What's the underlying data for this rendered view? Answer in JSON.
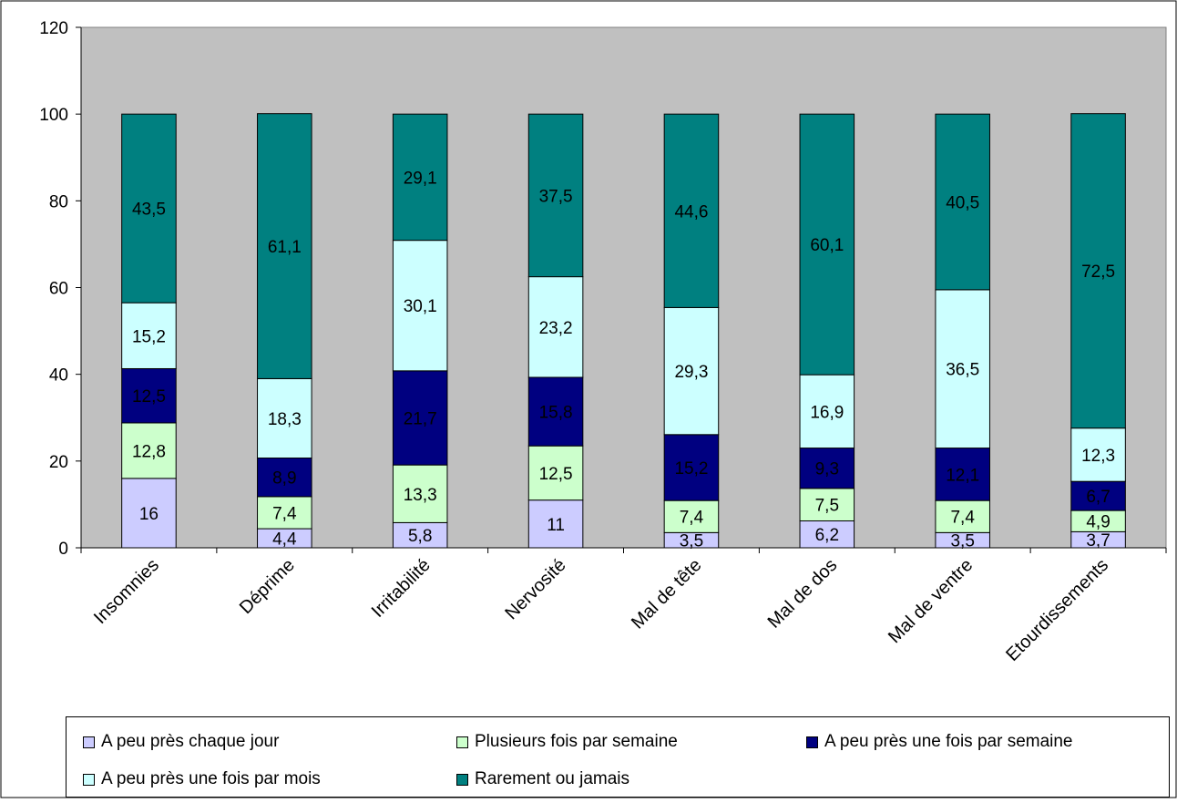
{
  "chart_data": {
    "type": "bar",
    "stacked": true,
    "categories": [
      "Insomnies",
      "Déprime",
      "Irritabilité",
      "Nervosité",
      "Mal de tête",
      "Mal de dos",
      "Mal de ventre",
      "Etourdissements"
    ],
    "series": [
      {
        "name": "A peu près chaque jour",
        "color": "#ccccff",
        "label_color": "#000000",
        "values": [
          16,
          4.4,
          5.8,
          11,
          3.5,
          6.2,
          3.5,
          3.7
        ],
        "labels": [
          "16",
          "4,4",
          "5,8",
          "11",
          "3,5",
          "6,2",
          "3,5",
          "3,7"
        ]
      },
      {
        "name": "Plusieurs fois par semaine",
        "color": "#ccffcc",
        "label_color": "#000000",
        "values": [
          12.8,
          7.4,
          13.3,
          12.5,
          7.4,
          7.5,
          7.4,
          4.9
        ],
        "labels": [
          "12,8",
          "7,4",
          "13,3",
          "12,5",
          "7,4",
          "7,5",
          "7,4",
          "4,9"
        ]
      },
      {
        "name": "A peu près une fois par semaine",
        "color": "#000080",
        "label_color": "#ffffff",
        "values": [
          12.5,
          8.9,
          21.7,
          15.8,
          15.2,
          9.3,
          12.1,
          6.7
        ],
        "labels": [
          "12,5",
          "8,9",
          "21,7",
          "15,8",
          "15,2",
          "9,3",
          "12,1",
          "6,7"
        ]
      },
      {
        "name": "A peu près une fois par mois",
        "color": "#ccffff",
        "label_color": "#000000",
        "values": [
          15.2,
          18.3,
          30.1,
          23.2,
          29.3,
          16.9,
          36.5,
          12.3
        ],
        "labels": [
          "15,2",
          "18,3",
          "30,1",
          "23,2",
          "29,3",
          "16,9",
          "36,5",
          "12,3"
        ]
      },
      {
        "name": "Rarement ou jamais",
        "color": "#008080",
        "label_color": "#000000",
        "values": [
          43.5,
          61.1,
          29.1,
          37.5,
          44.6,
          60.1,
          40.5,
          72.5
        ],
        "labels": [
          "43,5",
          "61,1",
          "29,1",
          "37,5",
          "44,6",
          "60,1",
          "40,5",
          "72,5"
        ]
      }
    ],
    "yticks": [
      "0",
      "20",
      "40",
      "60",
      "80",
      "100",
      "120"
    ],
    "ylim": [
      0,
      120
    ],
    "grid": false,
    "plot_background": "#c0c0c0",
    "legend_position": "bottom"
  }
}
